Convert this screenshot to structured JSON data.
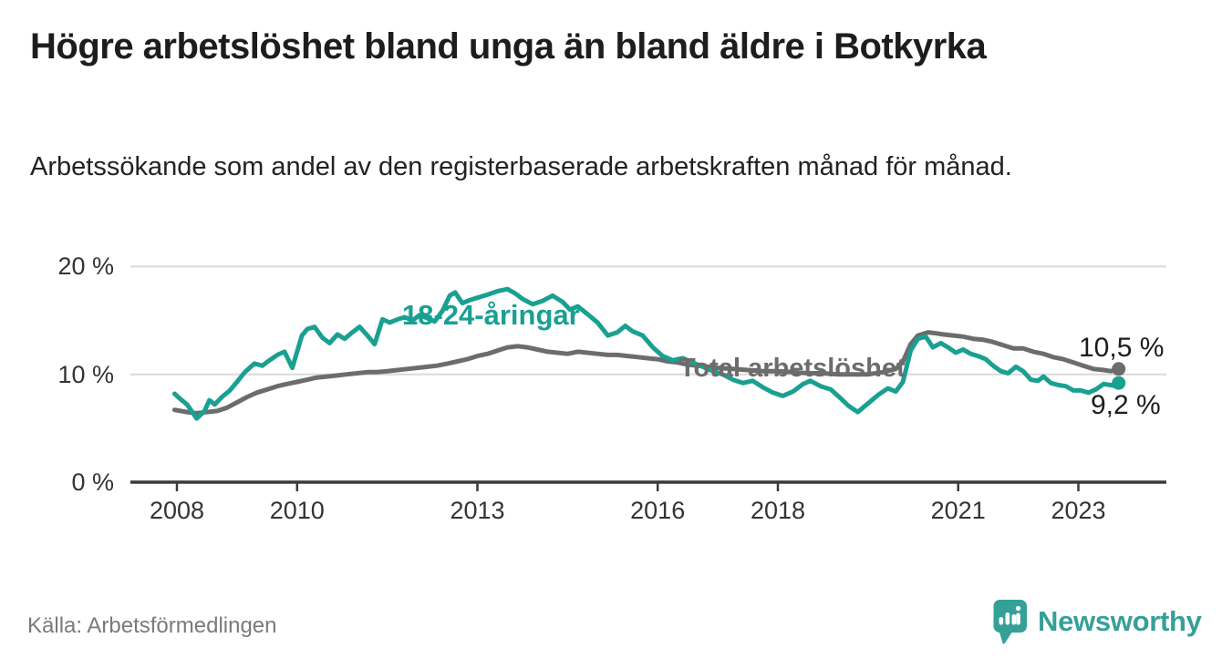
{
  "chart_data": {
    "type": "line",
    "title": "Högre arbetslöshet bland unga än bland äldre i Botkyrka",
    "subtitle": "Arbetssökande som andel av den registerbaserade arbetskraften månad för månad.",
    "grid": "horizontal",
    "legend_position": "inline-labels-on-lines",
    "ylim": [
      0,
      21
    ],
    "xlim": [
      2007.8,
      2024.3
    ],
    "y_ticks": [
      {
        "value": 0,
        "label": "0 %"
      },
      {
        "value": 10,
        "label": "10 %"
      },
      {
        "value": 20,
        "label": "20 %"
      }
    ],
    "x_ticks": [
      {
        "year": 2008,
        "label": "2008"
      },
      {
        "year": 2010,
        "label": "2010"
      },
      {
        "year": 2013,
        "label": "2013"
      },
      {
        "year": 2016,
        "label": "2016"
      },
      {
        "year": 2018,
        "label": "2018"
      },
      {
        "year": 2021,
        "label": "2021"
      },
      {
        "year": 2023,
        "label": "2023"
      }
    ],
    "series": [
      {
        "name": "18-24-åringar",
        "color": "#1AA092",
        "end_value": 9.2,
        "end_label": "9,2 %",
        "points": [
          [
            2007.96,
            8.2
          ],
          [
            2008.08,
            7.6
          ],
          [
            2008.17,
            7.2
          ],
          [
            2008.33,
            5.9
          ],
          [
            2008.46,
            6.6
          ],
          [
            2008.54,
            7.6
          ],
          [
            2008.63,
            7.2
          ],
          [
            2008.75,
            7.9
          ],
          [
            2008.88,
            8.5
          ],
          [
            2009.0,
            9.3
          ],
          [
            2009.13,
            10.2
          ],
          [
            2009.29,
            11.0
          ],
          [
            2009.42,
            10.8
          ],
          [
            2009.54,
            11.3
          ],
          [
            2009.67,
            11.8
          ],
          [
            2009.79,
            12.1
          ],
          [
            2009.92,
            10.6
          ],
          [
            2010.08,
            13.6
          ],
          [
            2010.17,
            14.2
          ],
          [
            2010.29,
            14.4
          ],
          [
            2010.42,
            13.4
          ],
          [
            2010.54,
            12.9
          ],
          [
            2010.67,
            13.7
          ],
          [
            2010.79,
            13.3
          ],
          [
            2010.92,
            13.9
          ],
          [
            2011.04,
            14.4
          ],
          [
            2011.17,
            13.6
          ],
          [
            2011.29,
            12.8
          ],
          [
            2011.42,
            15.1
          ],
          [
            2011.54,
            14.8
          ],
          [
            2011.67,
            15.1
          ],
          [
            2011.79,
            15.3
          ],
          [
            2011.92,
            15.0
          ],
          [
            2012.04,
            15.5
          ],
          [
            2012.17,
            15.2
          ],
          [
            2012.29,
            14.9
          ],
          [
            2012.42,
            15.9
          ],
          [
            2012.54,
            17.3
          ],
          [
            2012.63,
            17.6
          ],
          [
            2012.75,
            16.6
          ],
          [
            2012.88,
            16.9
          ],
          [
            2013.0,
            17.1
          ],
          [
            2013.17,
            17.4
          ],
          [
            2013.33,
            17.7
          ],
          [
            2013.5,
            17.9
          ],
          [
            2013.63,
            17.5
          ],
          [
            2013.75,
            17.0
          ],
          [
            2013.92,
            16.5
          ],
          [
            2014.08,
            16.8
          ],
          [
            2014.25,
            17.3
          ],
          [
            2014.42,
            16.7
          ],
          [
            2014.54,
            16.0
          ],
          [
            2014.67,
            16.3
          ],
          [
            2014.83,
            15.6
          ],
          [
            2015.0,
            14.8
          ],
          [
            2015.17,
            13.6
          ],
          [
            2015.33,
            13.9
          ],
          [
            2015.46,
            14.5
          ],
          [
            2015.58,
            14.0
          ],
          [
            2015.75,
            13.6
          ],
          [
            2015.92,
            12.5
          ],
          [
            2016.08,
            11.7
          ],
          [
            2016.25,
            11.3
          ],
          [
            2016.42,
            11.5
          ],
          [
            2016.58,
            11.1
          ],
          [
            2016.75,
            10.7
          ],
          [
            2016.92,
            10.3
          ],
          [
            2017.08,
            10.0
          ],
          [
            2017.25,
            9.5
          ],
          [
            2017.42,
            9.2
          ],
          [
            2017.58,
            9.4
          ],
          [
            2017.75,
            8.8
          ],
          [
            2017.92,
            8.3
          ],
          [
            2018.08,
            8.0
          ],
          [
            2018.25,
            8.4
          ],
          [
            2018.42,
            9.1
          ],
          [
            2018.54,
            9.4
          ],
          [
            2018.71,
            8.9
          ],
          [
            2018.88,
            8.6
          ],
          [
            2019.04,
            7.8
          ],
          [
            2019.17,
            7.1
          ],
          [
            2019.33,
            6.5
          ],
          [
            2019.5,
            7.3
          ],
          [
            2019.67,
            8.1
          ],
          [
            2019.83,
            8.7
          ],
          [
            2019.96,
            8.4
          ],
          [
            2020.08,
            9.3
          ],
          [
            2020.21,
            12.2
          ],
          [
            2020.33,
            13.3
          ],
          [
            2020.46,
            13.5
          ],
          [
            2020.58,
            12.5
          ],
          [
            2020.71,
            12.9
          ],
          [
            2020.83,
            12.5
          ],
          [
            2020.96,
            12.0
          ],
          [
            2021.08,
            12.3
          ],
          [
            2021.21,
            11.9
          ],
          [
            2021.33,
            11.7
          ],
          [
            2021.46,
            11.4
          ],
          [
            2021.58,
            10.8
          ],
          [
            2021.71,
            10.3
          ],
          [
            2021.83,
            10.1
          ],
          [
            2021.96,
            10.7
          ],
          [
            2022.08,
            10.3
          ],
          [
            2022.21,
            9.5
          ],
          [
            2022.33,
            9.4
          ],
          [
            2022.42,
            9.8
          ],
          [
            2022.54,
            9.2
          ],
          [
            2022.67,
            9.0
          ],
          [
            2022.79,
            8.9
          ],
          [
            2022.92,
            8.5
          ],
          [
            2023.04,
            8.5
          ],
          [
            2023.17,
            8.3
          ],
          [
            2023.29,
            8.6
          ],
          [
            2023.42,
            9.1
          ],
          [
            2023.54,
            9.0
          ],
          [
            2023.63,
            8.9
          ],
          [
            2023.67,
            9.2
          ]
        ]
      },
      {
        "name": "Total arbetslöshet",
        "color": "#6C6C6C",
        "end_value": 10.5,
        "end_label": "10,5 %",
        "points": [
          [
            2007.96,
            6.7
          ],
          [
            2008.17,
            6.5
          ],
          [
            2008.33,
            6.4
          ],
          [
            2008.5,
            6.5
          ],
          [
            2008.67,
            6.6
          ],
          [
            2008.83,
            6.9
          ],
          [
            2009.0,
            7.4
          ],
          [
            2009.17,
            7.9
          ],
          [
            2009.33,
            8.3
          ],
          [
            2009.5,
            8.6
          ],
          [
            2009.67,
            8.9
          ],
          [
            2009.83,
            9.1
          ],
          [
            2010.0,
            9.3
          ],
          [
            2010.17,
            9.5
          ],
          [
            2010.33,
            9.7
          ],
          [
            2010.5,
            9.8
          ],
          [
            2010.67,
            9.9
          ],
          [
            2010.83,
            10.0
          ],
          [
            2011.0,
            10.1
          ],
          [
            2011.17,
            10.2
          ],
          [
            2011.33,
            10.2
          ],
          [
            2011.5,
            10.3
          ],
          [
            2011.67,
            10.4
          ],
          [
            2011.83,
            10.5
          ],
          [
            2012.0,
            10.6
          ],
          [
            2012.17,
            10.7
          ],
          [
            2012.33,
            10.8
          ],
          [
            2012.5,
            11.0
          ],
          [
            2012.67,
            11.2
          ],
          [
            2012.83,
            11.4
          ],
          [
            2013.0,
            11.7
          ],
          [
            2013.17,
            11.9
          ],
          [
            2013.33,
            12.2
          ],
          [
            2013.5,
            12.5
          ],
          [
            2013.67,
            12.6
          ],
          [
            2013.83,
            12.5
          ],
          [
            2014.0,
            12.3
          ],
          [
            2014.17,
            12.1
          ],
          [
            2014.33,
            12.0
          ],
          [
            2014.5,
            11.9
          ],
          [
            2014.67,
            12.1
          ],
          [
            2014.83,
            12.0
          ],
          [
            2015.0,
            11.9
          ],
          [
            2015.17,
            11.8
          ],
          [
            2015.33,
            11.8
          ],
          [
            2015.5,
            11.7
          ],
          [
            2015.67,
            11.6
          ],
          [
            2015.83,
            11.5
          ],
          [
            2016.0,
            11.4
          ],
          [
            2016.17,
            11.2
          ],
          [
            2016.33,
            11.1
          ],
          [
            2016.5,
            10.9
          ],
          [
            2016.67,
            10.8
          ],
          [
            2016.83,
            10.7
          ],
          [
            2017.0,
            10.6
          ],
          [
            2017.25,
            10.5
          ],
          [
            2017.5,
            10.4
          ],
          [
            2017.75,
            10.3
          ],
          [
            2018.0,
            10.3
          ],
          [
            2018.25,
            10.2
          ],
          [
            2018.5,
            10.1
          ],
          [
            2018.75,
            10.1
          ],
          [
            2019.0,
            10.0
          ],
          [
            2019.25,
            10.0
          ],
          [
            2019.5,
            10.0
          ],
          [
            2019.75,
            10.2
          ],
          [
            2019.96,
            10.5
          ],
          [
            2020.08,
            11.2
          ],
          [
            2020.21,
            12.8
          ],
          [
            2020.33,
            13.6
          ],
          [
            2020.5,
            13.9
          ],
          [
            2020.63,
            13.8
          ],
          [
            2020.75,
            13.7
          ],
          [
            2020.92,
            13.6
          ],
          [
            2021.08,
            13.5
          ],
          [
            2021.25,
            13.3
          ],
          [
            2021.42,
            13.2
          ],
          [
            2021.58,
            13.0
          ],
          [
            2021.75,
            12.7
          ],
          [
            2021.92,
            12.4
          ],
          [
            2022.08,
            12.4
          ],
          [
            2022.25,
            12.1
          ],
          [
            2022.42,
            11.9
          ],
          [
            2022.58,
            11.6
          ],
          [
            2022.75,
            11.4
          ],
          [
            2022.92,
            11.1
          ],
          [
            2023.08,
            10.8
          ],
          [
            2023.25,
            10.5
          ],
          [
            2023.42,
            10.4
          ],
          [
            2023.54,
            10.3
          ],
          [
            2023.63,
            10.4
          ],
          [
            2023.67,
            10.5
          ]
        ]
      }
    ]
  },
  "footer": {
    "source": "Källa: Arbetsförmedlingen",
    "brand": "Newsworthy",
    "brand_color": "#35A097"
  }
}
